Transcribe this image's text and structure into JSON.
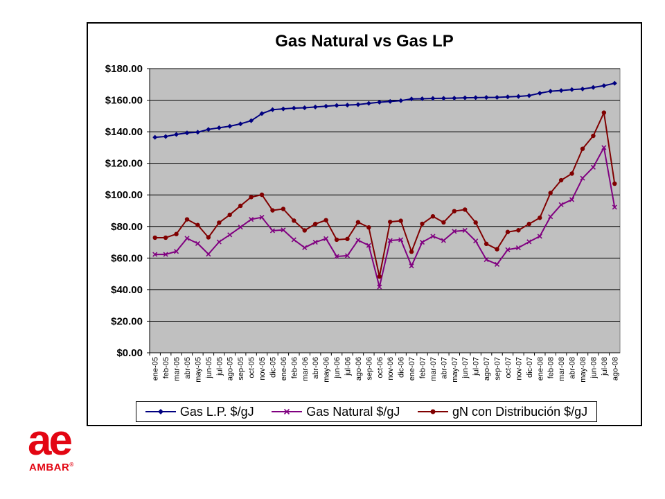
{
  "chart_data": {
    "type": "line",
    "title": "Gas Natural vs Gas LP",
    "xlabel": "",
    "ylabel": "",
    "ylim": [
      0,
      180
    ],
    "yticks": [
      0,
      20,
      40,
      60,
      80,
      100,
      120,
      140,
      160,
      180
    ],
    "ytick_labels": [
      "$0.00",
      "$20.00",
      "$40.00",
      "$60.00",
      "$80.00",
      "$100.00",
      "$120.00",
      "$140.00",
      "$160.00",
      "$180.00"
    ],
    "grid": true,
    "legend_position": "bottom",
    "categories": [
      "ene-05",
      "feb-05",
      "mar-05",
      "abr-05",
      "may-05",
      "jun-05",
      "jul-05",
      "ago-05",
      "sep-05",
      "oct-05",
      "nov-05",
      "dic-05",
      "ene-06",
      "feb-06",
      "mar-06",
      "abr-06",
      "may-06",
      "jun-06",
      "jul-06",
      "ago-06",
      "sep-06",
      "oct-06",
      "nov-06",
      "dic-06",
      "ene-07",
      "feb-07",
      "mar-07",
      "abr-07",
      "may-07",
      "jun-07",
      "jul-07",
      "ago-07",
      "sep-07",
      "oct-07",
      "nov-07",
      "dic-07",
      "ene-08",
      "feb-08",
      "mar-08",
      "abr-08",
      "may-08",
      "jun-08",
      "jul-08",
      "ago-08"
    ],
    "series": [
      {
        "name": "Gas L.P. $/gJ",
        "color": "#000080",
        "marker": "diamond",
        "values": [
          136.5,
          137,
          138.3,
          139.3,
          139.7,
          141.5,
          142.5,
          143.5,
          145,
          147,
          151.5,
          154,
          154.5,
          155,
          155.2,
          155.7,
          156.2,
          156.7,
          156.9,
          157.2,
          158,
          158.7,
          159.2,
          159.7,
          160.8,
          160.9,
          161.1,
          161.2,
          161.3,
          161.5,
          161.6,
          161.7,
          161.8,
          162.1,
          162.4,
          162.9,
          164.4,
          165.7,
          166.1,
          166.7,
          167.1,
          168.1,
          169.2,
          170.7
        ]
      },
      {
        "name": "Gas Natural $/gJ",
        "color": "#800080",
        "marker": "x",
        "values": [
          62.3,
          62.3,
          64.2,
          72.5,
          69.2,
          62.5,
          70.2,
          74.7,
          79.6,
          84.5,
          85.8,
          77.3,
          77.8,
          71.6,
          66.6,
          70,
          72.3,
          61,
          61.5,
          71.3,
          68,
          41.7,
          71.1,
          71.6,
          55,
          70,
          73.8,
          71.1,
          76.9,
          77.5,
          70.8,
          59,
          56,
          65.3,
          66.5,
          70.3,
          73.8,
          86.2,
          93.8,
          97,
          110.6,
          117.5,
          130,
          92.2
        ]
      },
      {
        "name": "gN con Distribución $/gJ",
        "color": "#800000",
        "marker": "circle",
        "values": [
          72.9,
          72.9,
          75.2,
          84.5,
          80.9,
          73.1,
          82.4,
          87.4,
          93.1,
          98.6,
          100.1,
          90.2,
          91.1,
          83.7,
          77.5,
          81.6,
          84,
          71.6,
          72.1,
          82.7,
          79.4,
          48.3,
          82.9,
          83.6,
          64,
          81.7,
          86.4,
          82.6,
          89.7,
          90.7,
          82.5,
          69,
          65.6,
          76.5,
          77.6,
          81.6,
          85.5,
          101.2,
          109.3,
          113.5,
          129.2,
          137.4,
          152.1,
          107.1
        ]
      }
    ]
  },
  "legend": {
    "items": [
      "Gas L.P. $/gJ",
      "Gas Natural $/gJ",
      "gN con Distribución $/gJ"
    ]
  },
  "logo": {
    "mark": "ae",
    "wordmark": "AMBAR",
    "registered": "®",
    "color": "#e30613"
  }
}
